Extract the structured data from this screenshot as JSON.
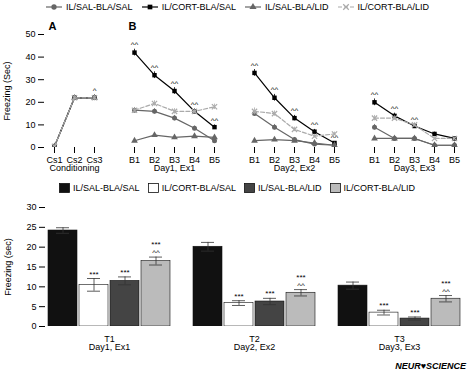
{
  "chart_data": [
    {
      "type": "line",
      "y_label": "Freezing (Sec)",
      "categories": [
        "Cs1",
        "Cs2",
        "Cs3",
        null,
        "B1",
        "B2",
        "B3",
        "B4",
        "B5",
        null,
        "B1",
        "B2",
        "B3",
        "B4",
        "B5",
        null,
        "B1",
        "B2",
        "B3",
        "B4",
        "B5"
      ],
      "group_labels": [
        "Conditioning",
        "Day1, Ex1",
        "Day2, Ex2",
        "Day3, Ex3"
      ],
      "panel_labels": [
        "A",
        "B"
      ],
      "ylim": [
        0,
        50
      ],
      "yticks": [
        0,
        10,
        20,
        30,
        40,
        50
      ],
      "legend": "top",
      "series": [
        {
          "name": "IL/SAL-BLA/SAL",
          "color": "#666666",
          "marker": "circle",
          "line_style": "solid",
          "values": [
            0.5,
            22,
            22,
            null,
            16.5,
            16,
            13,
            8.5,
            3,
            null,
            15,
            9,
            3.5,
            1.5,
            1,
            null,
            9,
            4,
            4,
            1,
            1
          ],
          "errors": [
            0.2,
            1.0,
            1.2,
            null,
            1.2,
            1.2,
            1.2,
            1.0,
            0.8,
            null,
            1.2,
            1.2,
            0.8,
            0.5,
            0.4,
            null,
            1.2,
            0.8,
            0.8,
            0.4,
            0.4
          ]
        },
        {
          "name": "IL/CORT-BLA/SAL",
          "color": "#000000",
          "marker": "square",
          "line_style": "solid",
          "values": [
            0.5,
            22,
            22,
            null,
            42,
            32,
            25,
            16,
            9,
            null,
            33,
            22,
            13,
            7,
            2,
            null,
            20,
            14,
            9.5,
            6,
            4
          ],
          "errors": [
            0.2,
            1.0,
            1.2,
            null,
            1.5,
            1.5,
            1.5,
            1.2,
            1.0,
            null,
            1.5,
            1.5,
            1.2,
            1.0,
            0.6,
            null,
            1.5,
            1.2,
            1.0,
            0.8,
            0.6
          ],
          "point_labels": [
            null,
            null,
            "^",
            null,
            "^^",
            "^^",
            "^^",
            "^^",
            "^^",
            null,
            "^^",
            "^^",
            "^^",
            "^^",
            "^^",
            null,
            "^^",
            "^^",
            "^^",
            null,
            null
          ]
        },
        {
          "name": "IL/SAL-BLA/LID",
          "color": "#666666",
          "marker": "triangle",
          "line_style": "solid",
          "values": [
            0.5,
            22,
            22,
            null,
            3,
            5.5,
            4.5,
            5,
            4.5,
            null,
            3,
            3.5,
            3,
            2,
            1,
            null,
            4,
            4,
            4,
            1,
            1
          ],
          "errors": [
            0.2,
            1.0,
            1.2,
            null,
            0.8,
            1.0,
            1.0,
            1.0,
            0.8,
            null,
            0.8,
            0.8,
            0.8,
            0.6,
            0.4,
            null,
            0.8,
            0.8,
            0.8,
            0.4,
            0.4
          ]
        },
        {
          "name": "IL/CORT-BLA/LID",
          "color": "#aaaaaa",
          "marker": "times",
          "line_style": "dashed",
          "values": [
            0.5,
            22,
            22,
            null,
            16.5,
            19.5,
            16,
            16,
            18,
            null,
            16,
            15,
            8,
            5,
            6,
            null,
            13,
            13,
            10,
            4,
            4
          ],
          "errors": [
            0.2,
            1.0,
            1.2,
            null,
            1.2,
            1.2,
            1.2,
            1.2,
            1.2,
            null,
            1.5,
            1.2,
            1.0,
            0.8,
            0.8,
            null,
            1.2,
            1.0,
            1.0,
            0.6,
            0.6
          ]
        }
      ]
    },
    {
      "type": "bar",
      "y_label": "Freezing (sec)",
      "categories": [
        "T1",
        "T2",
        "T3"
      ],
      "group_labels": [
        "Day1, Ex1",
        "Day2, Ex2",
        "Day3, Ex3"
      ],
      "ylim": [
        0,
        30
      ],
      "yticks": [
        0,
        5,
        10,
        15,
        20,
        25,
        30
      ],
      "legend": "top",
      "caption": "NEUR♥SCIENCE",
      "series": [
        {
          "name": "IL/SAL-BLA/SAL",
          "color": "#111111",
          "values": [
            24.2,
            20.1,
            10.3
          ],
          "errors": [
            0.7,
            1.1,
            0.9
          ]
        },
        {
          "name": "IL/CORT-BLA/SAL",
          "color": "#ffffff",
          "values": [
            10.5,
            5.9,
            3.5
          ],
          "errors": [
            1.6,
            0.6,
            0.6
          ],
          "point_labels": [
            "***",
            "***",
            "***"
          ]
        },
        {
          "name": "IL/SAL-BLA/LID",
          "color": "#444444",
          "values": [
            11.5,
            6.3,
            2.0
          ],
          "errors": [
            1.0,
            0.8,
            0.4
          ],
          "point_labels": [
            "***",
            "***",
            "***"
          ]
        },
        {
          "name": "IL/CORT-BLA/LID",
          "color": "#bbbbbb",
          "values": [
            16.5,
            8.5,
            7.0
          ],
          "errors": [
            1.0,
            0.8,
            0.8
          ],
          "point_labels": [
            "***\n^^",
            "***\n^^",
            "***\n^^"
          ]
        }
      ]
    }
  ]
}
